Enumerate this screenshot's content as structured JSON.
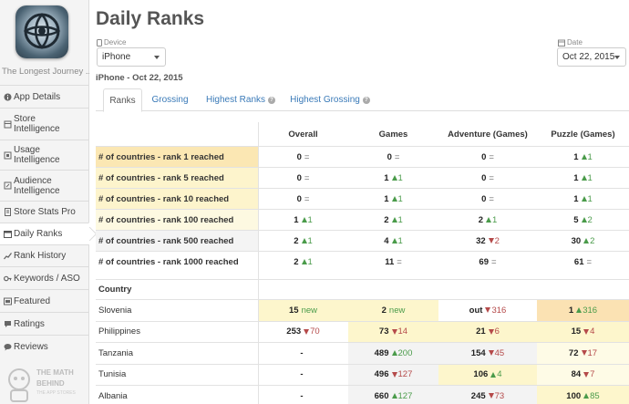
{
  "app": {
    "name": "The Longest Journey ...",
    "icon": "app-icon-sphere"
  },
  "sidebar": {
    "items": [
      {
        "label": "App Details",
        "icon": "info-circle-icon",
        "lines": 1
      },
      {
        "label": "Store Intelligence",
        "icon": "store-icon",
        "lines": 2
      },
      {
        "label": "Usage Intelligence",
        "icon": "usage-icon",
        "lines": 2
      },
      {
        "label": "Audience Intelligence",
        "icon": "audience-icon",
        "lines": 2
      },
      {
        "label": "Store Stats Pro",
        "icon": "document-icon",
        "lines": 1
      },
      {
        "label": "Daily Ranks",
        "icon": "calendar-icon",
        "lines": 1
      },
      {
        "label": "Rank History",
        "icon": "chart-icon",
        "lines": 1
      },
      {
        "label": "Keywords / ASO",
        "icon": "key-icon",
        "lines": 1
      },
      {
        "label": "Featured",
        "icon": "featured-icon",
        "lines": 1
      },
      {
        "label": "Ratings",
        "icon": "ratings-icon",
        "lines": 1
      },
      {
        "label": "Reviews",
        "icon": "reviews-icon",
        "lines": 1
      }
    ],
    "active": "Daily Ranks",
    "logo": {
      "line1": "THE MATH",
      "line2": "BEHIND",
      "line3": "THE APP STORES"
    }
  },
  "header": {
    "title": "Daily Ranks",
    "device_label": "Device",
    "device_value": "iPhone",
    "date_label": "Date",
    "date_value": "Oct 22, 2015",
    "subtitle": "iPhone - Oct 22, 2015"
  },
  "tabs": [
    {
      "label": "Ranks",
      "help": false
    },
    {
      "label": "Grossing",
      "help": false
    },
    {
      "label": "Highest Ranks",
      "help": true
    },
    {
      "label": "Highest Grossing",
      "help": true
    }
  ],
  "columns": [
    "Overall",
    "Games",
    "Adventure (Games)",
    "Puzzle (Games)"
  ],
  "summary_rows": [
    {
      "label": "# of countries - rank 1 reached",
      "cells": [
        [
          "0",
          "=",
          "eq"
        ],
        [
          "0",
          "=",
          "eq"
        ],
        [
          "0",
          "=",
          "eq"
        ],
        [
          "1",
          "1",
          "up"
        ]
      ]
    },
    {
      "label": "# of countries - rank 5 reached",
      "cells": [
        [
          "0",
          "=",
          "eq"
        ],
        [
          "1",
          "1",
          "up"
        ],
        [
          "0",
          "=",
          "eq"
        ],
        [
          "1",
          "1",
          "up"
        ]
      ]
    },
    {
      "label": "# of countries - rank 10 reached",
      "cells": [
        [
          "0",
          "=",
          "eq"
        ],
        [
          "1",
          "1",
          "up"
        ],
        [
          "0",
          "=",
          "eq"
        ],
        [
          "1",
          "1",
          "up"
        ]
      ]
    },
    {
      "label": "# of countries - rank 100 reached",
      "cells": [
        [
          "1",
          "1",
          "up"
        ],
        [
          "2",
          "1",
          "up"
        ],
        [
          "2",
          "1",
          "up"
        ],
        [
          "5",
          "2",
          "up"
        ]
      ]
    },
    {
      "label": "# of countries - rank 500 reached",
      "cells": [
        [
          "2",
          "1",
          "up"
        ],
        [
          "4",
          "1",
          "up"
        ],
        [
          "32",
          "2",
          "down"
        ],
        [
          "30",
          "2",
          "up"
        ]
      ]
    },
    {
      "label": "# of countries - rank 1000 reached",
      "cells": [
        [
          "2",
          "1",
          "up"
        ],
        [
          "11",
          "=",
          "eq"
        ],
        [
          "69",
          "=",
          "eq"
        ],
        [
          "61",
          "=",
          "eq"
        ]
      ]
    }
  ],
  "country_header": "Country",
  "country_rows": [
    {
      "country": "Slovenia",
      "cells": [
        [
          "15",
          "new",
          "new"
        ],
        [
          "2",
          "new",
          "new"
        ],
        [
          "out",
          "316",
          "down"
        ],
        [
          "1",
          "316",
          "up"
        ]
      ]
    },
    {
      "country": "Philippines",
      "cells": [
        [
          "253",
          "70",
          "down"
        ],
        [
          "73",
          "14",
          "down"
        ],
        [
          "21",
          "6",
          "down"
        ],
        [
          "15",
          "4",
          "down"
        ]
      ]
    },
    {
      "country": "Tanzania",
      "cells": [
        [
          "-",
          "",
          ""
        ],
        [
          "489",
          "200",
          "up"
        ],
        [
          "154",
          "45",
          "down"
        ],
        [
          "72",
          "17",
          "down"
        ]
      ]
    },
    {
      "country": "Tunisia",
      "cells": [
        [
          "-",
          "",
          ""
        ],
        [
          "496",
          "127",
          "down"
        ],
        [
          "106",
          "4",
          "up"
        ],
        [
          "84",
          "7",
          "down"
        ]
      ]
    },
    {
      "country": "Albania",
      "cells": [
        [
          "-",
          "",
          ""
        ],
        [
          "660",
          "127",
          "up"
        ],
        [
          "245",
          "73",
          "down"
        ],
        [
          "100",
          "85",
          "up"
        ]
      ]
    }
  ],
  "colors": {
    "label_high": "#fbe7b3",
    "label_mid": "#fdf4cc",
    "label_low": "#fdf9e1",
    "label_none": "#f4f4f4",
    "cell_top1": "#fbe2b3",
    "cell_top": "#fdf6cc",
    "cell_mid": "#fefbe6",
    "cell_plain": "#f3f3f3",
    "up": "#4a9b4a",
    "down": "#b54a4a",
    "link": "#3a7ab8"
  }
}
